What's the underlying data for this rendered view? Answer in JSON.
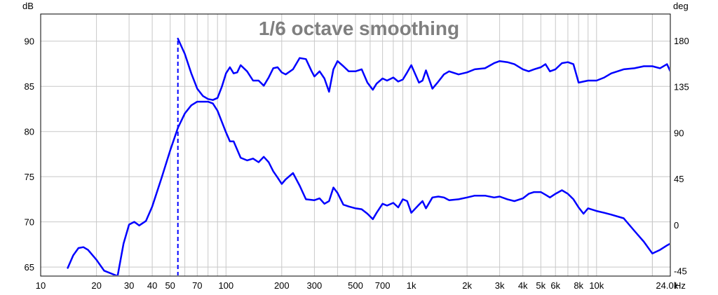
{
  "chart_data": {
    "type": "line",
    "title": "1/6 octave smoothing",
    "x_scale": "log",
    "xlim": [
      10,
      25000
    ],
    "ylim_left": [
      64,
      93
    ],
    "ylim_right": [
      -50,
      206
    ],
    "left_unit": "dB",
    "right_unit": "deg",
    "x_unit": "Hz",
    "grid": true,
    "line_color": "#0000ff",
    "x_ticks": [
      {
        "value": 10,
        "label": "10"
      },
      {
        "value": 20,
        "label": "20"
      },
      {
        "value": 30,
        "label": "30"
      },
      {
        "value": 40,
        "label": "40"
      },
      {
        "value": 50,
        "label": "50"
      },
      {
        "value": 70,
        "label": "70"
      },
      {
        "value": 100,
        "label": "100"
      },
      {
        "value": 200,
        "label": "200"
      },
      {
        "value": 300,
        "label": "300"
      },
      {
        "value": 500,
        "label": "500"
      },
      {
        "value": 700,
        "label": "700"
      },
      {
        "value": 1000,
        "label": "1k"
      },
      {
        "value": 2000,
        "label": "2k"
      },
      {
        "value": 3000,
        "label": "3k"
      },
      {
        "value": 4000,
        "label": "4k"
      },
      {
        "value": 5000,
        "label": "5k"
      },
      {
        "value": 6000,
        "label": "6k"
      },
      {
        "value": 8000,
        "label": "8k"
      },
      {
        "value": 10000,
        "label": "10k"
      },
      {
        "value": 24000,
        "label": "24.0k"
      }
    ],
    "y_ticks_left": [
      {
        "value": 90,
        "label": "90"
      },
      {
        "value": 85,
        "label": "85"
      },
      {
        "value": 80,
        "label": "80"
      },
      {
        "value": 75,
        "label": "75"
      },
      {
        "value": 70,
        "label": "70"
      },
      {
        "value": 65,
        "label": "65"
      }
    ],
    "y_ticks_right": [
      {
        "value": 180,
        "label": "180"
      },
      {
        "value": 135,
        "label": "135"
      },
      {
        "value": 90,
        "label": "90"
      },
      {
        "value": 45,
        "label": "45"
      },
      {
        "value": 0,
        "label": "0"
      },
      {
        "value": -45,
        "label": "-45"
      }
    ],
    "series": [
      {
        "axis": "left",
        "x": [
          14,
          15,
          16,
          17,
          18,
          20,
          22,
          26,
          28,
          30,
          32,
          34,
          37,
          40,
          45,
          50,
          55,
          60,
          65,
          70,
          75,
          80,
          85,
          90,
          100,
          105,
          110,
          120,
          130,
          140,
          150,
          160,
          170,
          180,
          190,
          200,
          210,
          230,
          250,
          270,
          300,
          320,
          340,
          360,
          380,
          400,
          430,
          460,
          500,
          540,
          580,
          620,
          650,
          700,
          740,
          800,
          850,
          900,
          950,
          1000,
          1100,
          1150,
          1200,
          1300,
          1400,
          1500,
          1600,
          1800,
          2000,
          2200,
          2500,
          2800,
          3000,
          3300,
          3600,
          4000,
          4300,
          4600,
          5000,
          5300,
          5600,
          6000,
          6500,
          7000,
          7500,
          8000,
          8500,
          9000,
          10000,
          11000,
          12000,
          14000,
          16000,
          18000,
          20000,
          22000,
          24000,
          25000
        ],
        "y": [
          64.9,
          66.3,
          67.1,
          67.2,
          66.9,
          65.8,
          64.6,
          64.0,
          67.6,
          69.7,
          70.0,
          69.6,
          70.1,
          71.7,
          74.9,
          77.9,
          80.4,
          82.0,
          82.9,
          83.3,
          83.3,
          83.3,
          83.1,
          82.3,
          79.9,
          78.9,
          78.9,
          77.1,
          76.8,
          77.0,
          76.6,
          77.2,
          76.6,
          75.6,
          74.9,
          74.2,
          74.7,
          75.4,
          74.0,
          72.5,
          72.4,
          72.6,
          72.0,
          72.3,
          73.8,
          73.2,
          71.9,
          71.7,
          71.5,
          71.4,
          70.9,
          70.3,
          71.0,
          72.0,
          71.8,
          72.1,
          71.6,
          72.5,
          72.3,
          71.0,
          71.9,
          72.3,
          71.5,
          72.7,
          72.8,
          72.7,
          72.4,
          72.5,
          72.7,
          72.9,
          72.9,
          72.7,
          72.8,
          72.5,
          72.3,
          72.6,
          73.1,
          73.3,
          73.3,
          73.0,
          72.7,
          73.1,
          73.5,
          73.1,
          72.5,
          71.6,
          70.9,
          71.5,
          71.2,
          71.0,
          70.8,
          70.4,
          69.0,
          67.8,
          66.5,
          66.9,
          67.4,
          67.6
        ]
      },
      {
        "axis": "right",
        "x": [
          55,
          60,
          65,
          70,
          75,
          80,
          85,
          90,
          95,
          100,
          105,
          110,
          115,
          120,
          130,
          140,
          150,
          160,
          170,
          180,
          190,
          200,
          210,
          230,
          250,
          270,
          290,
          300,
          320,
          340,
          360,
          380,
          400,
          430,
          460,
          500,
          540,
          580,
          620,
          650,
          700,
          740,
          800,
          850,
          900,
          950,
          1000,
          1100,
          1150,
          1200,
          1300,
          1400,
          1500,
          1600,
          1800,
          2000,
          2200,
          2500,
          2800,
          3000,
          3300,
          3600,
          4000,
          4300,
          4600,
          5000,
          5300,
          5600,
          6000,
          6500,
          7000,
          7500,
          8000,
          8500,
          9000,
          10000,
          11000,
          12000,
          14000,
          16000,
          18000,
          20000,
          22000,
          24000,
          25000
        ],
        "y": [
          182,
          167,
          148,
          133,
          126,
          123,
          122,
          124,
          135,
          148,
          154,
          148,
          149,
          156,
          150,
          141,
          141,
          136,
          144,
          153,
          154,
          149,
          147,
          152,
          163,
          162,
          150,
          145,
          150,
          143,
          130,
          152,
          160,
          155,
          150,
          150,
          152,
          139,
          132,
          138,
          143,
          141,
          144,
          140,
          142,
          149,
          156,
          139,
          141,
          151,
          133,
          140,
          147,
          150,
          147,
          149,
          152,
          153,
          158,
          160,
          159,
          157,
          152,
          150,
          152,
          154,
          157,
          150,
          152,
          158,
          159,
          157,
          139,
          140,
          141,
          141,
          144,
          148,
          152,
          153,
          155,
          155,
          153,
          157,
          150
        ]
      }
    ],
    "markers": [
      {
        "type": "vertical-dashed",
        "x": 55,
        "y_from": 64,
        "y_to": 90.1
      }
    ]
  }
}
